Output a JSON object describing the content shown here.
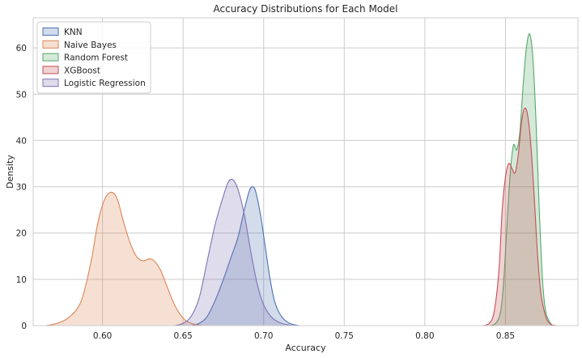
{
  "chart_data": {
    "type": "area",
    "title": "Accuracy Distributions for Each Model",
    "xlabel": "Accuracy",
    "ylabel": "Density",
    "xlim": [
      0.557,
      0.895
    ],
    "ylim": [
      0,
      66.5
    ],
    "xticks": [
      0.6,
      0.65,
      0.7,
      0.75,
      0.8,
      0.85
    ],
    "xtick_labels": [
      "0.60",
      "0.65",
      "0.70",
      "0.75",
      "0.80",
      "0.85"
    ],
    "yticks": [
      0,
      10,
      20,
      30,
      40,
      50,
      60
    ],
    "ytick_labels": [
      "0",
      "10",
      "20",
      "30",
      "40",
      "50",
      "60"
    ],
    "grid": true,
    "legend_position": "top-left",
    "series": [
      {
        "name": "KNN",
        "color": "#4c72b0",
        "points": [
          [
            0.655,
            0
          ],
          [
            0.66,
            0.5
          ],
          [
            0.665,
            2
          ],
          [
            0.67,
            5.5
          ],
          [
            0.675,
            10
          ],
          [
            0.68,
            15
          ],
          [
            0.684,
            19
          ],
          [
            0.688,
            25
          ],
          [
            0.691,
            29
          ],
          [
            0.693,
            30
          ],
          [
            0.695,
            29
          ],
          [
            0.698,
            24
          ],
          [
            0.701,
            17
          ],
          [
            0.704,
            10
          ],
          [
            0.707,
            5
          ],
          [
            0.711,
            2
          ],
          [
            0.716,
            0.5
          ],
          [
            0.722,
            0
          ]
        ]
      },
      {
        "name": "Naive Bayes",
        "color": "#dd8452",
        "points": [
          [
            0.565,
            0
          ],
          [
            0.572,
            0.5
          ],
          [
            0.58,
            2
          ],
          [
            0.587,
            5.5
          ],
          [
            0.593,
            14
          ],
          [
            0.597,
            22
          ],
          [
            0.601,
            27
          ],
          [
            0.605,
            28.8
          ],
          [
            0.609,
            27.5
          ],
          [
            0.613,
            22.5
          ],
          [
            0.617,
            18
          ],
          [
            0.621,
            15
          ],
          [
            0.625,
            14
          ],
          [
            0.629,
            14.4
          ],
          [
            0.632,
            14
          ],
          [
            0.636,
            12
          ],
          [
            0.64,
            8.5
          ],
          [
            0.644,
            5
          ],
          [
            0.648,
            2.5
          ],
          [
            0.652,
            1
          ],
          [
            0.657,
            0.3
          ],
          [
            0.662,
            0
          ]
        ]
      },
      {
        "name": "Random Forest",
        "color": "#55a868",
        "points": [
          [
            0.84,
            0
          ],
          [
            0.844,
            0.5
          ],
          [
            0.847,
            3
          ],
          [
            0.849,
            10
          ],
          [
            0.851,
            22
          ],
          [
            0.853,
            33
          ],
          [
            0.855,
            39
          ],
          [
            0.857,
            38
          ],
          [
            0.859,
            42
          ],
          [
            0.861,
            52
          ],
          [
            0.863,
            60
          ],
          [
            0.865,
            63
          ],
          [
            0.867,
            58
          ],
          [
            0.869,
            44
          ],
          [
            0.871,
            25
          ],
          [
            0.873,
            10
          ],
          [
            0.875,
            3
          ],
          [
            0.878,
            0.5
          ],
          [
            0.88,
            0
          ]
        ]
      },
      {
        "name": "XGBoost",
        "color": "#c44e52",
        "points": [
          [
            0.836,
            0
          ],
          [
            0.84,
            0.5
          ],
          [
            0.843,
            3
          ],
          [
            0.846,
            12
          ],
          [
            0.848,
            25
          ],
          [
            0.85,
            32
          ],
          [
            0.852,
            35
          ],
          [
            0.854,
            34
          ],
          [
            0.856,
            33
          ],
          [
            0.858,
            37
          ],
          [
            0.86,
            44
          ],
          [
            0.862,
            47
          ],
          [
            0.864,
            45
          ],
          [
            0.866,
            38
          ],
          [
            0.868,
            27
          ],
          [
            0.87,
            15
          ],
          [
            0.872,
            7
          ],
          [
            0.875,
            2
          ],
          [
            0.878,
            0.3
          ],
          [
            0.882,
            0
          ]
        ]
      },
      {
        "name": "Logistic Regression",
        "color": "#8172b3",
        "points": [
          [
            0.645,
            0
          ],
          [
            0.65,
            0.5
          ],
          [
            0.655,
            2
          ],
          [
            0.66,
            6
          ],
          [
            0.665,
            14
          ],
          [
            0.67,
            22
          ],
          [
            0.675,
            28
          ],
          [
            0.678,
            31
          ],
          [
            0.681,
            31.5
          ],
          [
            0.684,
            29.5
          ],
          [
            0.688,
            24
          ],
          [
            0.692,
            16
          ],
          [
            0.696,
            9
          ],
          [
            0.7,
            4.5
          ],
          [
            0.705,
            1.8
          ],
          [
            0.711,
            0.5
          ],
          [
            0.718,
            0
          ]
        ]
      }
    ]
  }
}
